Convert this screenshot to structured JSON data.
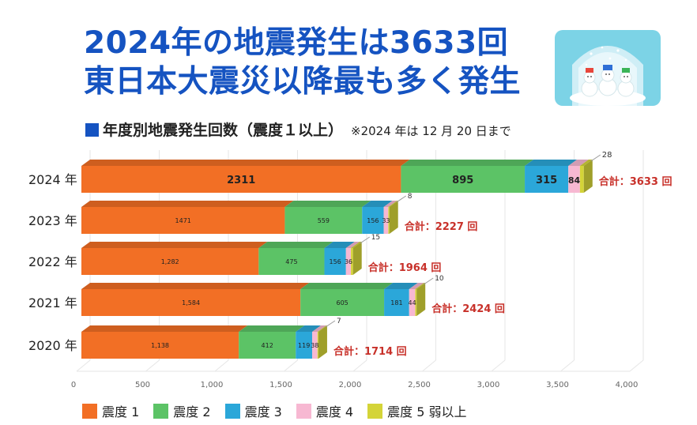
{
  "headline": {
    "line1": "2024年の地震発生は3633回",
    "line2": "東日本大震災以降最も多く発生"
  },
  "image": {
    "icon": "snowmen-in-snow-globe-icon"
  },
  "subtitle": {
    "title": "年度別地震発生回数（震度１以上）",
    "note": "※2024 年は 12 月 20 日まで"
  },
  "colors": {
    "headline": "#1553c1",
    "total": "#c8312a",
    "series": [
      "#f26f25",
      "#5cc366",
      "#2ba7d9",
      "#f7b8d2",
      "#d4d438"
    ]
  },
  "chart_data": {
    "type": "bar",
    "orientation": "horizontal",
    "stacked": true,
    "categories": [
      "2024 年",
      "2023 年",
      "2022 年",
      "2021 年",
      "2020 年"
    ],
    "series": [
      {
        "name": "震度 1",
        "values": [
          2311,
          1471,
          1282,
          1584,
          1138
        ],
        "labels": [
          "2311",
          "1471",
          "1,282",
          "1,584",
          "1,138"
        ]
      },
      {
        "name": "震度 2",
        "values": [
          895,
          559,
          475,
          605,
          412
        ],
        "labels": [
          "895",
          "559",
          "475",
          "605",
          "412"
        ]
      },
      {
        "name": "震度 3",
        "values": [
          315,
          156,
          156,
          181,
          119
        ],
        "labels": [
          "315",
          "156",
          "156",
          "181",
          "119"
        ]
      },
      {
        "name": "震度 4",
        "values": [
          84,
          33,
          36,
          44,
          38
        ],
        "labels": [
          "84",
          "33",
          "36",
          "44",
          "38"
        ]
      },
      {
        "name": "震度 5 弱以上",
        "values": [
          28,
          8,
          15,
          10,
          7
        ],
        "labels": [
          "28",
          "8",
          "15",
          "10",
          "7"
        ]
      }
    ],
    "totals": [
      "合計：3633 回",
      "合計：2227 回",
      "合計：1964 回",
      "合計：2424 回",
      "合計：1714 回"
    ],
    "xticks": [
      "0",
      "500",
      "1,000",
      "1,500",
      "2,000",
      "2,500",
      "3,000",
      "3,500",
      "4,000"
    ],
    "xlim": [
      0,
      4000
    ],
    "grid": true,
    "legend_position": "bottom"
  }
}
